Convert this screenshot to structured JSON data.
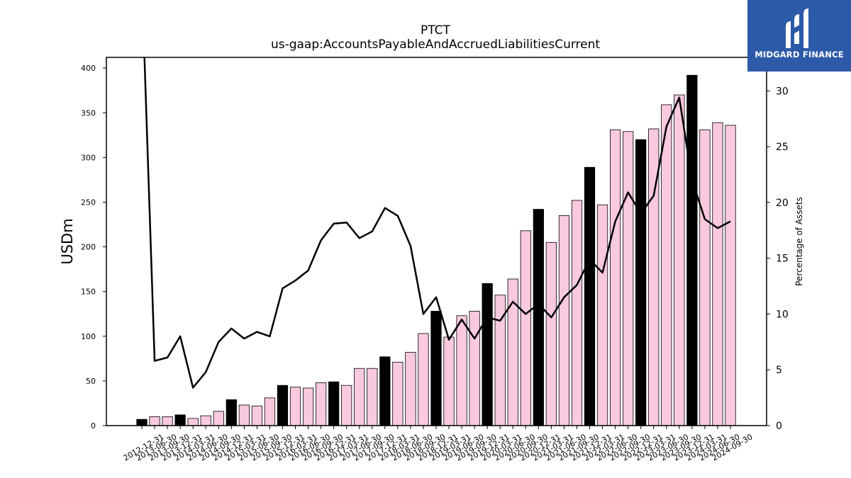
{
  "chart_data": {
    "type": "bar",
    "title": "PTCT",
    "subtitle": "us-gaap:AccountsPayableAndAccruedLiabilitiesCurrent",
    "ylabel": "USDm",
    "y2label": "Percentage of Assets",
    "ylim": [
      0,
      412
    ],
    "y2lim": [
      0,
      33
    ],
    "yticks": [
      0,
      50,
      100,
      150,
      200,
      250,
      300,
      350,
      400
    ],
    "y2ticks": [
      0,
      5,
      10,
      15,
      20,
      25,
      30
    ],
    "categories": [
      "2012-12-31",
      "2013-06-30",
      "2013-09-30",
      "2013-12-31",
      "2014-03-31",
      "2014-06-30",
      "2014-09-30",
      "2014-12-31",
      "2015-03-31",
      "2015-06-30",
      "2015-09-30",
      "2015-12-31",
      "2016-03-31",
      "2016-06-30",
      "2016-09-30",
      "2016-12-31",
      "2017-03-31",
      "2017-06-30",
      "2017-09-30",
      "2017-12-31",
      "2018-03-31",
      "2018-06-30",
      "2018-09-30",
      "2018-12-31",
      "2019-03-31",
      "2019-06-30",
      "2019-09-30",
      "2019-12-31",
      "2020-03-31",
      "2020-06-30",
      "2020-09-30",
      "2020-12-31",
      "2021-03-31",
      "2021-06-30",
      "2021-09-30",
      "2021-12-31",
      "2022-03-31",
      "2022-06-30",
      "2022-09-30",
      "2022-12-31",
      "2023-03-31",
      "2023-06-30",
      "2023-09-30",
      "2023-12-31",
      "2024-03-31",
      "2024-06-30",
      "2024-09-30"
    ],
    "series": [
      {
        "kind": "bar",
        "values": [
          7,
          10,
          10,
          12,
          8,
          11,
          16,
          29,
          23,
          22,
          31,
          45,
          43,
          42,
          48,
          49,
          45,
          64,
          64,
          77,
          71,
          82,
          103,
          128,
          99,
          123,
          128,
          159,
          146,
          164,
          218,
          242,
          205,
          235,
          252,
          289,
          247,
          331,
          329,
          320,
          332,
          359,
          370,
          392,
          331,
          339,
          336
        ],
        "highlight": [
          true,
          false,
          false,
          true,
          false,
          false,
          false,
          true,
          false,
          false,
          false,
          true,
          false,
          false,
          false,
          true,
          false,
          false,
          false,
          true,
          false,
          false,
          false,
          true,
          false,
          false,
          false,
          true,
          false,
          false,
          false,
          true,
          false,
          false,
          false,
          true,
          false,
          false,
          false,
          true,
          false,
          false,
          false,
          true,
          false,
          false,
          false
        ]
      },
      {
        "kind": "line",
        "axis": "right",
        "values": [
          40,
          5.8,
          6.1,
          8.0,
          3.4,
          4.8,
          7.5,
          8.7,
          7.8,
          8.4,
          8.0,
          12.3,
          13.0,
          13.9,
          16.6,
          18.1,
          18.2,
          16.8,
          17.4,
          19.5,
          18.8,
          16.1,
          10.0,
          11.5,
          7.7,
          9.5,
          7.8,
          9.7,
          9.4,
          11.1,
          10.0,
          10.9,
          9.7,
          11.5,
          12.6,
          14.9,
          13.7,
          18.3,
          20.9,
          19.0,
          20.6,
          26.8,
          29.4,
          22.0,
          18.5,
          17.7,
          18.3
        ]
      }
    ],
    "colors": {
      "bar_fill": "#f9c9e0",
      "bar_highlight": "#000000",
      "bar_edge": "#000000",
      "line": "#000000"
    },
    "grid": false,
    "legend": "none"
  },
  "logo": {
    "text": "MIDGARD FINANCE",
    "bg": "#2d5aa8"
  }
}
